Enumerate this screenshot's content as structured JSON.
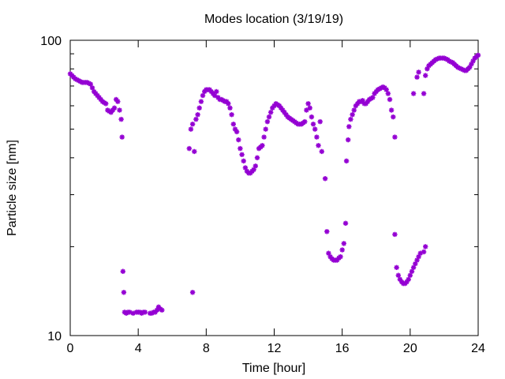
{
  "chart_data": {
    "type": "scatter",
    "title": "Modes location (3/19/19)",
    "xlabel": "Time [hour]",
    "ylabel": "Particle size [nm]",
    "xlim": [
      0,
      24
    ],
    "ylim": [
      10,
      100
    ],
    "yscale": "log",
    "xticks": [
      0,
      4,
      8,
      12,
      16,
      20,
      24
    ],
    "yticks": [
      10,
      100
    ],
    "grid": false,
    "legend": "none",
    "marker_color": "#9400d3",
    "marker": "asterisk",
    "series": [
      {
        "points": [
          [
            0.0,
            77.0
          ],
          [
            0.1,
            76.0
          ],
          [
            0.2,
            75.0
          ],
          [
            0.3,
            74.0
          ],
          [
            0.4,
            73.5
          ],
          [
            0.5,
            73.0
          ],
          [
            0.6,
            72.5
          ],
          [
            0.7,
            72.0
          ],
          [
            0.8,
            72.0
          ],
          [
            0.9,
            72.0
          ],
          [
            1.0,
            72.0
          ],
          [
            1.1,
            71.5
          ],
          [
            1.2,
            71.0
          ],
          [
            1.3,
            69.0
          ],
          [
            1.4,
            67.0
          ],
          [
            1.5,
            66.0
          ],
          [
            1.6,
            65.0
          ],
          [
            1.7,
            64.0
          ],
          [
            1.8,
            63.0
          ],
          [
            1.9,
            62.0
          ],
          [
            2.0,
            61.5
          ],
          [
            2.1,
            61.0
          ],
          [
            2.2,
            58.0
          ],
          [
            2.3,
            57.5
          ],
          [
            2.4,
            57.0
          ],
          [
            2.5,
            58.0
          ],
          [
            2.6,
            59.0
          ],
          [
            2.7,
            63.0
          ],
          [
            2.8,
            62.0
          ],
          [
            2.9,
            58.0
          ],
          [
            3.0,
            54.0
          ],
          [
            3.05,
            47.0
          ],
          [
            3.1,
            16.5
          ],
          [
            3.15,
            14.0
          ],
          [
            3.2,
            12.0
          ],
          [
            3.3,
            11.9
          ],
          [
            3.4,
            12.0
          ],
          [
            3.5,
            12.0
          ],
          [
            3.7,
            11.9
          ],
          [
            3.9,
            12.0
          ],
          [
            4.0,
            12.0
          ],
          [
            4.1,
            12.0
          ],
          [
            4.2,
            11.9
          ],
          [
            4.3,
            12.0
          ],
          [
            4.4,
            12.0
          ],
          [
            4.7,
            11.9
          ],
          [
            4.8,
            11.9
          ],
          [
            4.9,
            12.0
          ],
          [
            5.0,
            12.0
          ],
          [
            5.1,
            12.2
          ],
          [
            5.2,
            12.5
          ],
          [
            5.3,
            12.3
          ],
          [
            5.4,
            12.2
          ],
          [
            7.0,
            43.0
          ],
          [
            7.1,
            50.0
          ],
          [
            7.2,
            52.0
          ],
          [
            7.3,
            42.0
          ],
          [
            7.2,
            14.0
          ],
          [
            7.4,
            54.0
          ],
          [
            7.5,
            56.0
          ],
          [
            7.6,
            59.0
          ],
          [
            7.7,
            62.0
          ],
          [
            7.8,
            65.0
          ],
          [
            7.9,
            67.0
          ],
          [
            8.0,
            68.0
          ],
          [
            8.1,
            68.0
          ],
          [
            8.2,
            68.0
          ],
          [
            8.3,
            67.0
          ],
          [
            8.4,
            66.0
          ],
          [
            8.5,
            65.0
          ],
          [
            8.6,
            67.0
          ],
          [
            8.7,
            64.0
          ],
          [
            8.8,
            63.0
          ],
          [
            8.9,
            63.0
          ],
          [
            9.0,
            62.5
          ],
          [
            9.1,
            62.0
          ],
          [
            9.2,
            62.0
          ],
          [
            9.3,
            61.0
          ],
          [
            9.4,
            59.0
          ],
          [
            9.5,
            56.0
          ],
          [
            9.6,
            52.0
          ],
          [
            9.7,
            50.0
          ],
          [
            9.8,
            49.0
          ],
          [
            9.9,
            46.0
          ],
          [
            10.0,
            43.0
          ],
          [
            10.1,
            41.0
          ],
          [
            10.2,
            39.0
          ],
          [
            10.3,
            37.0
          ],
          [
            10.4,
            36.0
          ],
          [
            10.5,
            35.5
          ],
          [
            10.6,
            35.5
          ],
          [
            10.7,
            36.0
          ],
          [
            10.8,
            36.5
          ],
          [
            10.9,
            37.5
          ],
          [
            11.0,
            40.0
          ],
          [
            11.1,
            43.0
          ],
          [
            11.2,
            43.5
          ],
          [
            11.3,
            44.0
          ],
          [
            11.4,
            47.0
          ],
          [
            11.5,
            50.0
          ],
          [
            11.6,
            53.0
          ],
          [
            11.7,
            55.0
          ],
          [
            11.8,
            57.0
          ],
          [
            11.9,
            59.0
          ],
          [
            12.0,
            60.0
          ],
          [
            12.1,
            61.0
          ],
          [
            12.2,
            60.5
          ],
          [
            12.3,
            60.0
          ],
          [
            12.4,
            59.0
          ],
          [
            12.5,
            58.0
          ],
          [
            12.6,
            57.0
          ],
          [
            12.7,
            56.0
          ],
          [
            12.8,
            55.0
          ],
          [
            12.9,
            54.5
          ],
          [
            13.0,
            54.0
          ],
          [
            13.1,
            53.5
          ],
          [
            13.2,
            53.0
          ],
          [
            13.3,
            52.5
          ],
          [
            13.4,
            52.0
          ],
          [
            13.5,
            52.0
          ],
          [
            13.6,
            52.0
          ],
          [
            13.7,
            52.5
          ],
          [
            13.8,
            53.0
          ],
          [
            13.9,
            58.0
          ],
          [
            14.0,
            61.0
          ],
          [
            14.1,
            59.0
          ],
          [
            14.2,
            55.0
          ],
          [
            14.3,
            52.0
          ],
          [
            14.4,
            50.0
          ],
          [
            14.5,
            47.0
          ],
          [
            14.6,
            44.0
          ],
          [
            14.7,
            53.0
          ],
          [
            14.8,
            42.0
          ],
          [
            15.0,
            34.0
          ],
          [
            15.1,
            22.5
          ],
          [
            15.2,
            19.0
          ],
          [
            15.3,
            18.5
          ],
          [
            15.4,
            18.2
          ],
          [
            15.5,
            18.0
          ],
          [
            15.6,
            18.0
          ],
          [
            15.7,
            18.0
          ],
          [
            15.8,
            18.3
          ],
          [
            15.9,
            18.5
          ],
          [
            16.0,
            19.5
          ],
          [
            16.1,
            20.5
          ],
          [
            16.2,
            24.0
          ],
          [
            16.25,
            39.0
          ],
          [
            16.35,
            46.0
          ],
          [
            16.4,
            51.0
          ],
          [
            16.5,
            54.0
          ],
          [
            16.6,
            56.0
          ],
          [
            16.7,
            58.0
          ],
          [
            16.8,
            60.0
          ],
          [
            16.9,
            61.0
          ],
          [
            17.0,
            62.0
          ],
          [
            17.1,
            62.0
          ],
          [
            17.2,
            62.5
          ],
          [
            17.3,
            61.0
          ],
          [
            17.4,
            61.0
          ],
          [
            17.5,
            62.0
          ],
          [
            17.6,
            63.0
          ],
          [
            17.7,
            63.5
          ],
          [
            17.8,
            64.0
          ],
          [
            17.9,
            66.0
          ],
          [
            18.0,
            67.0
          ],
          [
            18.1,
            68.0
          ],
          [
            18.2,
            68.5
          ],
          [
            18.3,
            69.0
          ],
          [
            18.4,
            69.5
          ],
          [
            18.5,
            69.0
          ],
          [
            18.6,
            68.0
          ],
          [
            18.7,
            66.0
          ],
          [
            18.8,
            63.0
          ],
          [
            18.9,
            58.0
          ],
          [
            19.0,
            55.0
          ],
          [
            19.1,
            47.0
          ],
          [
            19.1,
            22.0
          ],
          [
            19.2,
            17.0
          ],
          [
            19.3,
            16.0
          ],
          [
            19.4,
            15.5
          ],
          [
            19.5,
            15.2
          ],
          [
            19.6,
            15.0
          ],
          [
            19.7,
            15.0
          ],
          [
            19.8,
            15.2
          ],
          [
            19.9,
            15.5
          ],
          [
            20.0,
            16.0
          ],
          [
            20.1,
            16.5
          ],
          [
            20.2,
            17.0
          ],
          [
            20.3,
            17.5
          ],
          [
            20.4,
            18.0
          ],
          [
            20.5,
            18.5
          ],
          [
            20.6,
            19.0
          ],
          [
            20.8,
            19.2
          ],
          [
            20.9,
            20.0
          ],
          [
            20.2,
            66.0
          ],
          [
            20.4,
            75.0
          ],
          [
            20.5,
            78.0
          ],
          [
            20.8,
            66.0
          ],
          [
            20.9,
            76.0
          ],
          [
            21.0,
            80.0
          ],
          [
            21.1,
            82.0
          ],
          [
            21.2,
            83.0
          ],
          [
            21.3,
            84.0
          ],
          [
            21.4,
            85.0
          ],
          [
            21.5,
            86.0
          ],
          [
            21.6,
            86.5
          ],
          [
            21.7,
            87.0
          ],
          [
            21.8,
            87.0
          ],
          [
            21.9,
            87.0
          ],
          [
            22.0,
            87.0
          ],
          [
            22.1,
            86.5
          ],
          [
            22.2,
            86.0
          ],
          [
            22.3,
            85.0
          ],
          [
            22.4,
            84.5
          ],
          [
            22.5,
            84.0
          ],
          [
            22.6,
            83.0
          ],
          [
            22.7,
            82.0
          ],
          [
            22.8,
            81.0
          ],
          [
            22.9,
            80.5
          ],
          [
            23.0,
            80.0
          ],
          [
            23.1,
            79.5
          ],
          [
            23.2,
            79.0
          ],
          [
            23.3,
            79.0
          ],
          [
            23.4,
            80.0
          ],
          [
            23.5,
            81.0
          ],
          [
            23.6,
            83.0
          ],
          [
            23.7,
            85.0
          ],
          [
            23.8,
            87.0
          ],
          [
            23.9,
            88.0
          ],
          [
            24.0,
            89.0
          ]
        ]
      }
    ]
  }
}
